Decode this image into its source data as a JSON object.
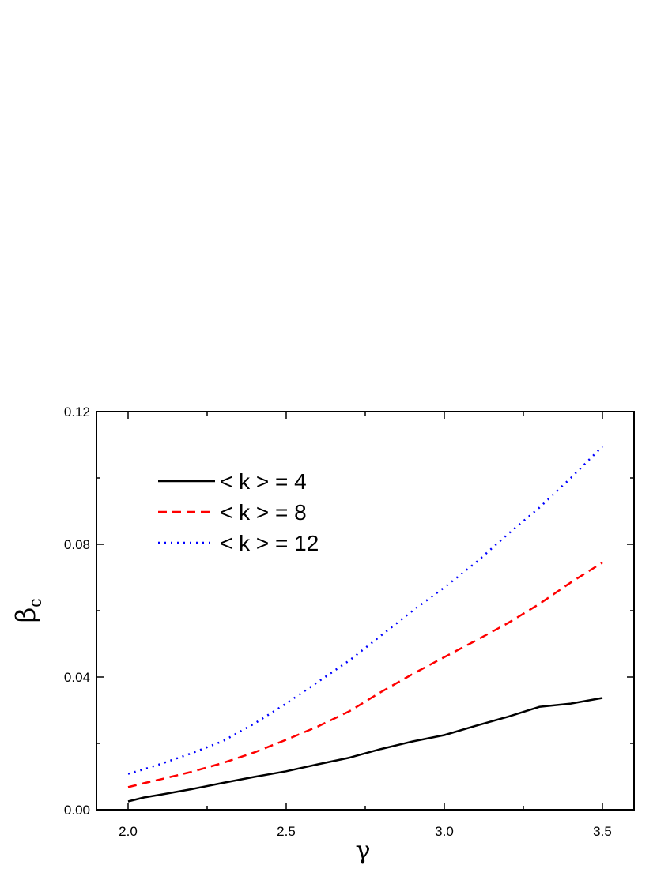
{
  "chart_data": {
    "type": "line",
    "xlabel": "γ",
    "ylabel": "β",
    "ylabel_subscript": "c",
    "xlim": [
      1.9,
      3.6
    ],
    "ylim": [
      0.0,
      0.12
    ],
    "x_ticks": [
      2.0,
      2.5,
      3.0,
      3.5
    ],
    "x_tick_labels": [
      "2.0",
      "2.5",
      "3.0",
      "3.5"
    ],
    "y_ticks": [
      0.0,
      0.04,
      0.08,
      0.12
    ],
    "y_tick_labels": [
      "0.00",
      "0.04",
      "0.08",
      "0.12"
    ],
    "grid": false,
    "legend_position": "top-left",
    "x": [
      2.0,
      2.05,
      2.1,
      2.2,
      2.3,
      2.4,
      2.5,
      2.6,
      2.7,
      2.8,
      2.9,
      3.0,
      3.1,
      3.2,
      3.3,
      3.4,
      3.5
    ],
    "series": [
      {
        "name": "< k > = 4",
        "color": "#000000",
        "dash": "solid",
        "values": [
          0.0025,
          0.0037,
          0.0045,
          0.0062,
          0.0081,
          0.0099,
          0.0116,
          0.0137,
          0.0157,
          0.0183,
          0.0206,
          0.0225,
          0.0253,
          0.028,
          0.031,
          0.032,
          0.0337
        ]
      },
      {
        "name": "< k > = 8",
        "color": "#ff0000",
        "dash": "dashed",
        "values": [
          0.0068,
          0.008,
          0.0091,
          0.0114,
          0.0141,
          0.0173,
          0.0211,
          0.0251,
          0.0297,
          0.0355,
          0.0409,
          0.046,
          0.051,
          0.0562,
          0.062,
          0.0685,
          0.0745
        ]
      },
      {
        "name": "< k > = 12",
        "color": "#0000ff",
        "dash": "dotted",
        "values": [
          0.0108,
          0.0122,
          0.0137,
          0.017,
          0.0207,
          0.026,
          0.032,
          0.0385,
          0.045,
          0.0525,
          0.06,
          0.067,
          0.0745,
          0.083,
          0.091,
          0.1,
          0.1095
        ]
      }
    ]
  }
}
